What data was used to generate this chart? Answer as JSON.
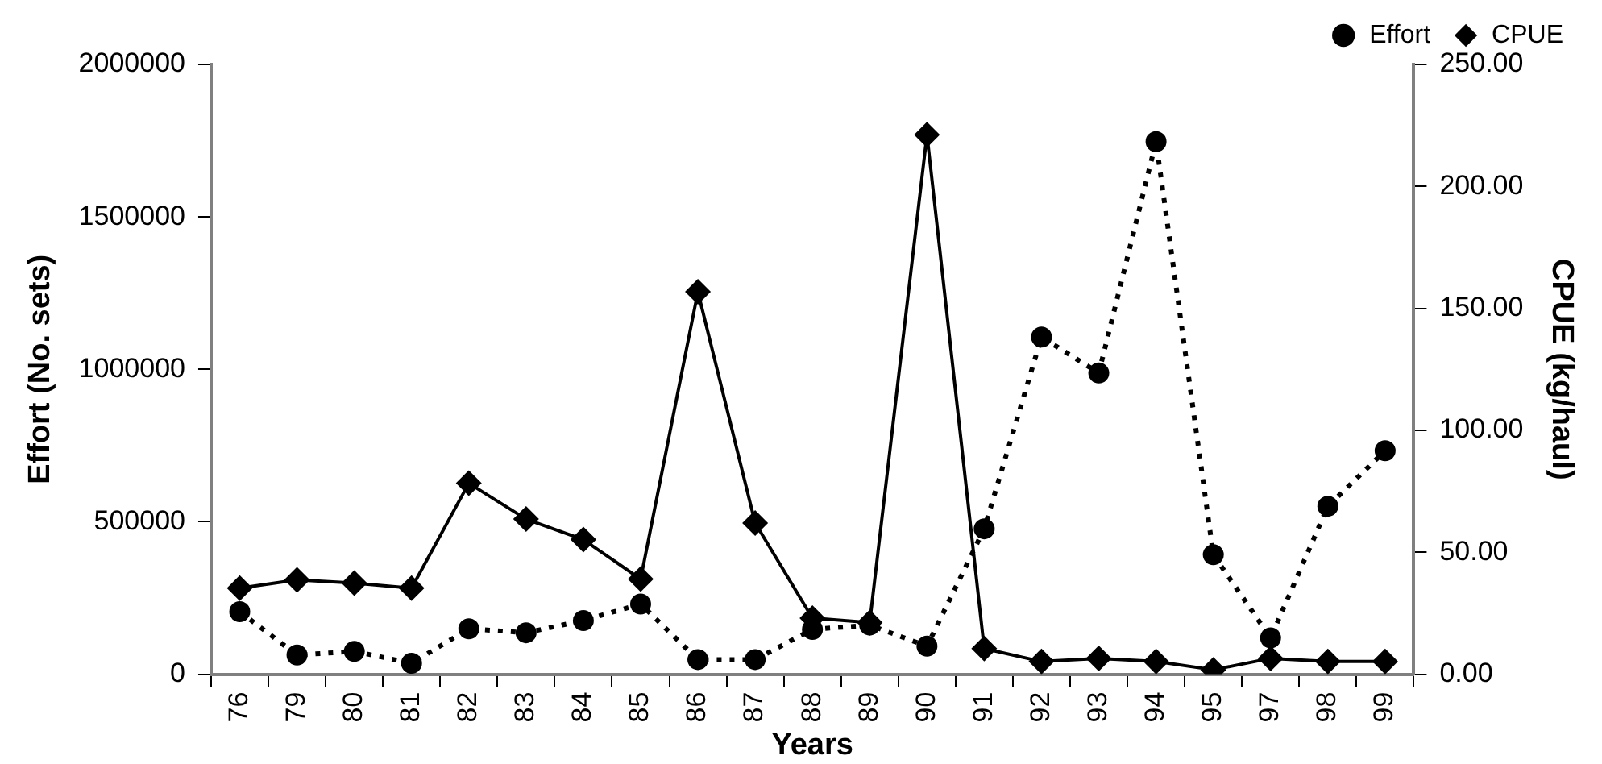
{
  "chart_data": {
    "type": "line",
    "xlabel": "Years",
    "ylabel": "Effort (No. sets)",
    "y2label": "CPUE (kg/haul)",
    "categories": [
      "76",
      "79",
      "80",
      "81",
      "82",
      "83",
      "84",
      "85",
      "86",
      "87",
      "88",
      "89",
      "90",
      "91",
      "92",
      "93",
      "94",
      "95",
      "97",
      "98",
      "99"
    ],
    "series": [
      {
        "name": "Effort",
        "color": "#000000",
        "marker": "circle",
        "line_style": "dotted",
        "values": [
          205000,
          63000,
          75000,
          36000,
          149000,
          136000,
          176000,
          230000,
          48000,
          48000,
          147000,
          161000,
          92000,
          477000,
          1106000,
          988000,
          1747000,
          392000,
          119000,
          551000,
          733000
        ]
      },
      {
        "name": "CPUE",
        "color": "#000000",
        "marker": "diamond",
        "line_style": "solid",
        "axis": "y2",
        "values": [
          35.3,
          38.7,
          37.4,
          35.3,
          78.3,
          63.6,
          55.2,
          39.0,
          156.8,
          62.0,
          23.0,
          21.2,
          221.2,
          10.5,
          5.2,
          6.5,
          5.2,
          1.8,
          6.5,
          5.2,
          5.2
        ]
      }
    ],
    "ylim": [
      0,
      2000000
    ],
    "yticks": [
      0,
      500000,
      1000000,
      1500000,
      2000000
    ],
    "y2lim": [
      0,
      250
    ],
    "y2ticks": [
      {
        "value": 0,
        "label": "0.00"
      },
      {
        "value": 50,
        "label": "50.00"
      },
      {
        "value": 100,
        "label": "100.00"
      },
      {
        "value": 150,
        "label": "150.00"
      },
      {
        "value": 200,
        "label": "200.00"
      },
      {
        "value": 250,
        "label": "250.00"
      }
    ],
    "grid": false,
    "legend": "top right"
  }
}
